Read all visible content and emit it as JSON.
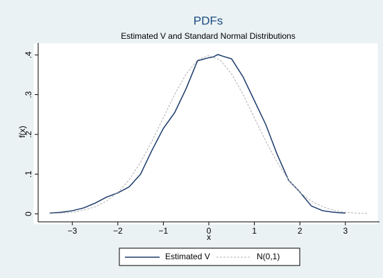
{
  "chart_data": {
    "type": "line",
    "title": "PDFs",
    "subtitle": "Estimated V and Standard Normal Distributions",
    "x_label": "x",
    "y_label": "f(x)",
    "xlim": [
      -3.75,
      3.75
    ],
    "xticks": [
      {
        "value": -3,
        "label": "−3"
      },
      {
        "value": -2,
        "label": "−2"
      },
      {
        "value": -1,
        "label": "−1"
      },
      0,
      1,
      2,
      3
    ],
    "ylim": [
      -0.02,
      0.43
    ],
    "yticks": [
      {
        "value": 0,
        "label": "0"
      },
      {
        "value": 0.1,
        "label": ".1"
      },
      {
        "value": 0.2,
        "label": ".2"
      },
      {
        "value": 0.3,
        "label": ".3"
      },
      {
        "value": 0.4,
        "label": ".4"
      }
    ],
    "series": [
      {
        "name": "Estimated V",
        "color": "#1a3a6b",
        "dash": false,
        "x": [
          -3.5,
          -3.25,
          -3,
          -2.75,
          -2.5,
          -2.25,
          -2,
          -1.75,
          -1.5,
          -1.25,
          -1,
          -0.75,
          -0.5,
          -0.25,
          0,
          0.1,
          0.2,
          0.3,
          0.5,
          0.75,
          1,
          1.25,
          1.5,
          1.75,
          2,
          2.25,
          2.5,
          2.75,
          3
        ],
        "values": [
          0.002,
          0.004,
          0.008,
          0.015,
          0.027,
          0.042,
          0.053,
          0.068,
          0.1,
          0.16,
          0.215,
          0.255,
          0.315,
          0.385,
          0.393,
          0.395,
          0.401,
          0.397,
          0.39,
          0.345,
          0.285,
          0.225,
          0.15,
          0.085,
          0.055,
          0.02,
          0.008,
          0.004,
          0.002
        ]
      },
      {
        "name": "N(0,1)",
        "color": "#b0b0b0",
        "dash": true,
        "x": [
          -3.5,
          -3.25,
          -3,
          -2.75,
          -2.5,
          -2.25,
          -2,
          -1.75,
          -1.5,
          -1.25,
          -1,
          -0.75,
          -0.5,
          -0.25,
          0,
          0.25,
          0.5,
          0.75,
          1,
          1.25,
          1.5,
          1.75,
          2,
          2.25,
          2.5,
          2.75,
          3,
          3.25,
          3.5
        ],
        "values": [
          0.001,
          0.002,
          0.004,
          0.009,
          0.018,
          0.032,
          0.054,
          0.086,
          0.13,
          0.183,
          0.242,
          0.301,
          0.352,
          0.387,
          0.399,
          0.387,
          0.352,
          0.301,
          0.242,
          0.183,
          0.13,
          0.086,
          0.054,
          0.032,
          0.018,
          0.009,
          0.004,
          0.002,
          0.001
        ]
      }
    ]
  }
}
